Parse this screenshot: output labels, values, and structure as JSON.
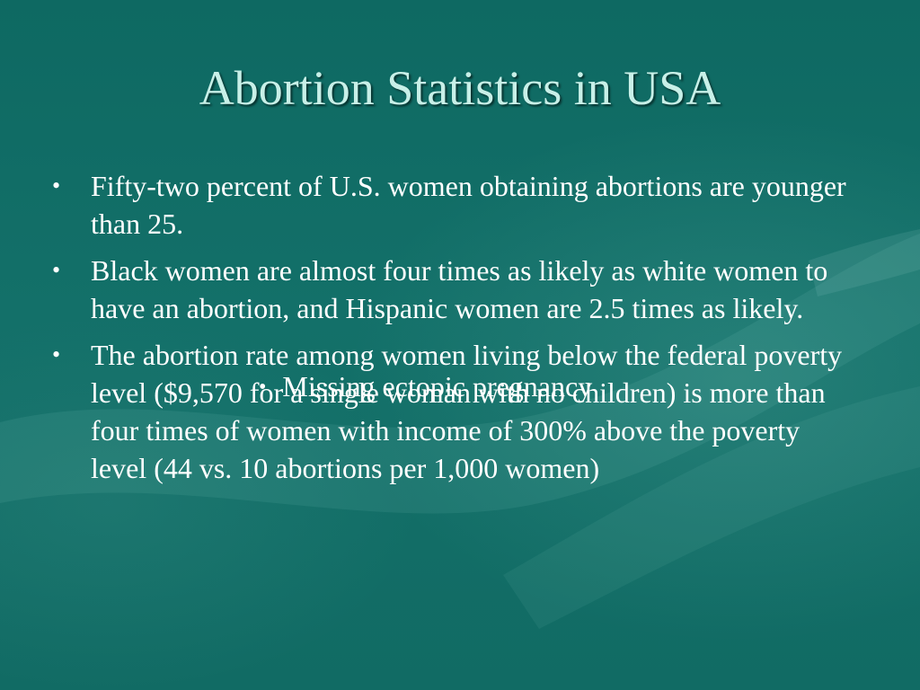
{
  "slide": {
    "title": "Abortion Statistics in USA",
    "bullet_glyph": "•",
    "bullets": [
      "Fifty-two percent of U.S. women obtaining abortions are younger than 25.",
      "Black women are almost four times as likely as white women to have an abortion, and Hispanic women are 2.5 times as likely.",
      "The abortion rate among women living below the federal poverty level ($9,570 for a single woman with no children) is more than four times of women with income of 300% above the poverty level (44 vs. 10 abortions per 1,000 women)"
    ],
    "overlay_bullet": "Missing ectopic pregnancy"
  }
}
